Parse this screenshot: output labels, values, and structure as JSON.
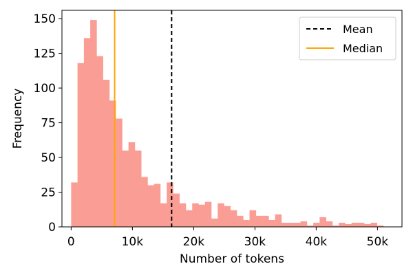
{
  "chart_data": {
    "type": "bar",
    "subtype": "histogram",
    "xlabel": "Number of tokens",
    "ylabel": "Frequency",
    "xlim": [
      -1500,
      54000
    ],
    "ylim": [
      0,
      156
    ],
    "x_ticks": [
      {
        "value": 0,
        "label": "0"
      },
      {
        "value": 10000,
        "label": "10k"
      },
      {
        "value": 20000,
        "label": "20k"
      },
      {
        "value": 30000,
        "label": "30k"
      },
      {
        "value": 40000,
        "label": "40k"
      },
      {
        "value": 50000,
        "label": "50k"
      }
    ],
    "y_ticks": [
      {
        "value": 0,
        "label": "0"
      },
      {
        "value": 25,
        "label": "25"
      },
      {
        "value": 50,
        "label": "50"
      },
      {
        "value": 75,
        "label": "75"
      },
      {
        "value": 100,
        "label": "100"
      },
      {
        "value": 125,
        "label": "125"
      },
      {
        "value": 150,
        "label": "150"
      }
    ],
    "bin_start": 0,
    "bin_width": 1040,
    "bin_counts": [
      32,
      118,
      136,
      149,
      123,
      106,
      91,
      78,
      55,
      61,
      55,
      36,
      30,
      31,
      17,
      32,
      24,
      17,
      12,
      17,
      16,
      18,
      6,
      17,
      15,
      12,
      8,
      5,
      12,
      8,
      8,
      5,
      9,
      3,
      3,
      3,
      4,
      1,
      3,
      7,
      4,
      1,
      3,
      2,
      3,
      3,
      2,
      3,
      1
    ],
    "bar_color": "#fa9e95",
    "grid": false,
    "mean": {
      "label": "Mean",
      "value": 16400,
      "color": "#000000",
      "style": "dashed"
    },
    "median": {
      "label": "Median",
      "value": 7100,
      "color": "#ffa500",
      "style": "solid"
    },
    "legend_position": "top-right"
  }
}
